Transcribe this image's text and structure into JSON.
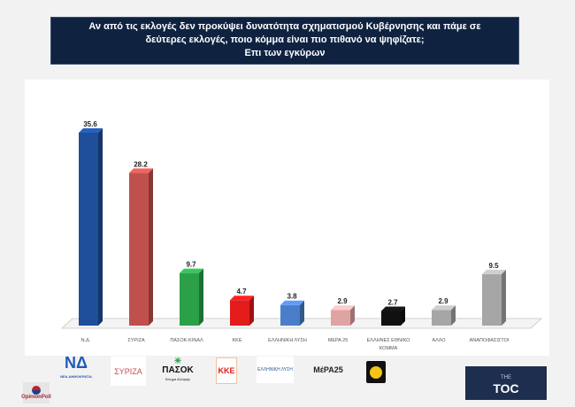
{
  "title": {
    "line1": "Αν από τις εκλογές δεν προκύψει δυνατότητα σχηματισμού Κυβέρνησης και πάμε σε",
    "line2": "δεύτερες εκλογές, ποιο κόμμα είναι πιο πιθανό να ψηφίζατε;",
    "line3": "Επι των εγκύρων"
  },
  "chart_data": {
    "type": "bar",
    "categories": [
      "Ν.Δ.",
      "ΣΥΡΙΖΑ",
      "ΠΑΣΟΚ-ΚΙΝΑΛ",
      "ΚΚΕ",
      "ΕΛΛΗΝΙΚΗ ΛΥΣΗ",
      "ΜΕΡΑ 25",
      "ΕΛΛΗΝΕΣ ΕΘΝΙΚΟ ΚΟΜΜΑ",
      "ΑΛΛΟ",
      "ΑΝΑΠΟΦΑΣΙΣΤΟΙ"
    ],
    "values": [
      35.6,
      28.2,
      9.7,
      4.7,
      3.8,
      2.9,
      2.7,
      2.9,
      9.5
    ],
    "value_labels": [
      "35.6",
      "28.2",
      "9.7",
      "4.7",
      "3.8",
      "2.9",
      "2.7",
      "2.9",
      "9.5"
    ],
    "colors": [
      "#1f4e9a",
      "#c0504d",
      "#2ca048",
      "#e31b1b",
      "#4a7ec9",
      "#e0a3a3",
      "#111111",
      "#a6a6a6",
      "#a6a6a6"
    ],
    "ylim": [
      0,
      36
    ],
    "style": "3d-column",
    "grid": false
  },
  "logos": {
    "nd": "ΝΔ",
    "nd_sub": "ΝΕΑ ΔΗΜΟΚΡΑΤΙΑ",
    "syriza": "ΣΥΡΙΖΑ",
    "pasok": "ΠΑΣΟΚ",
    "pasok_sub": "Κίνημα Αλλαγής",
    "kke": "ΚΚΕ",
    "el": "ΕΛΛΗΝΙΚΗ ΛΥΣΗ",
    "mera": "ΜέΡΑ25",
    "opinion": "OpinionPoll",
    "toc_top": "THE",
    "toc": "TOC"
  }
}
